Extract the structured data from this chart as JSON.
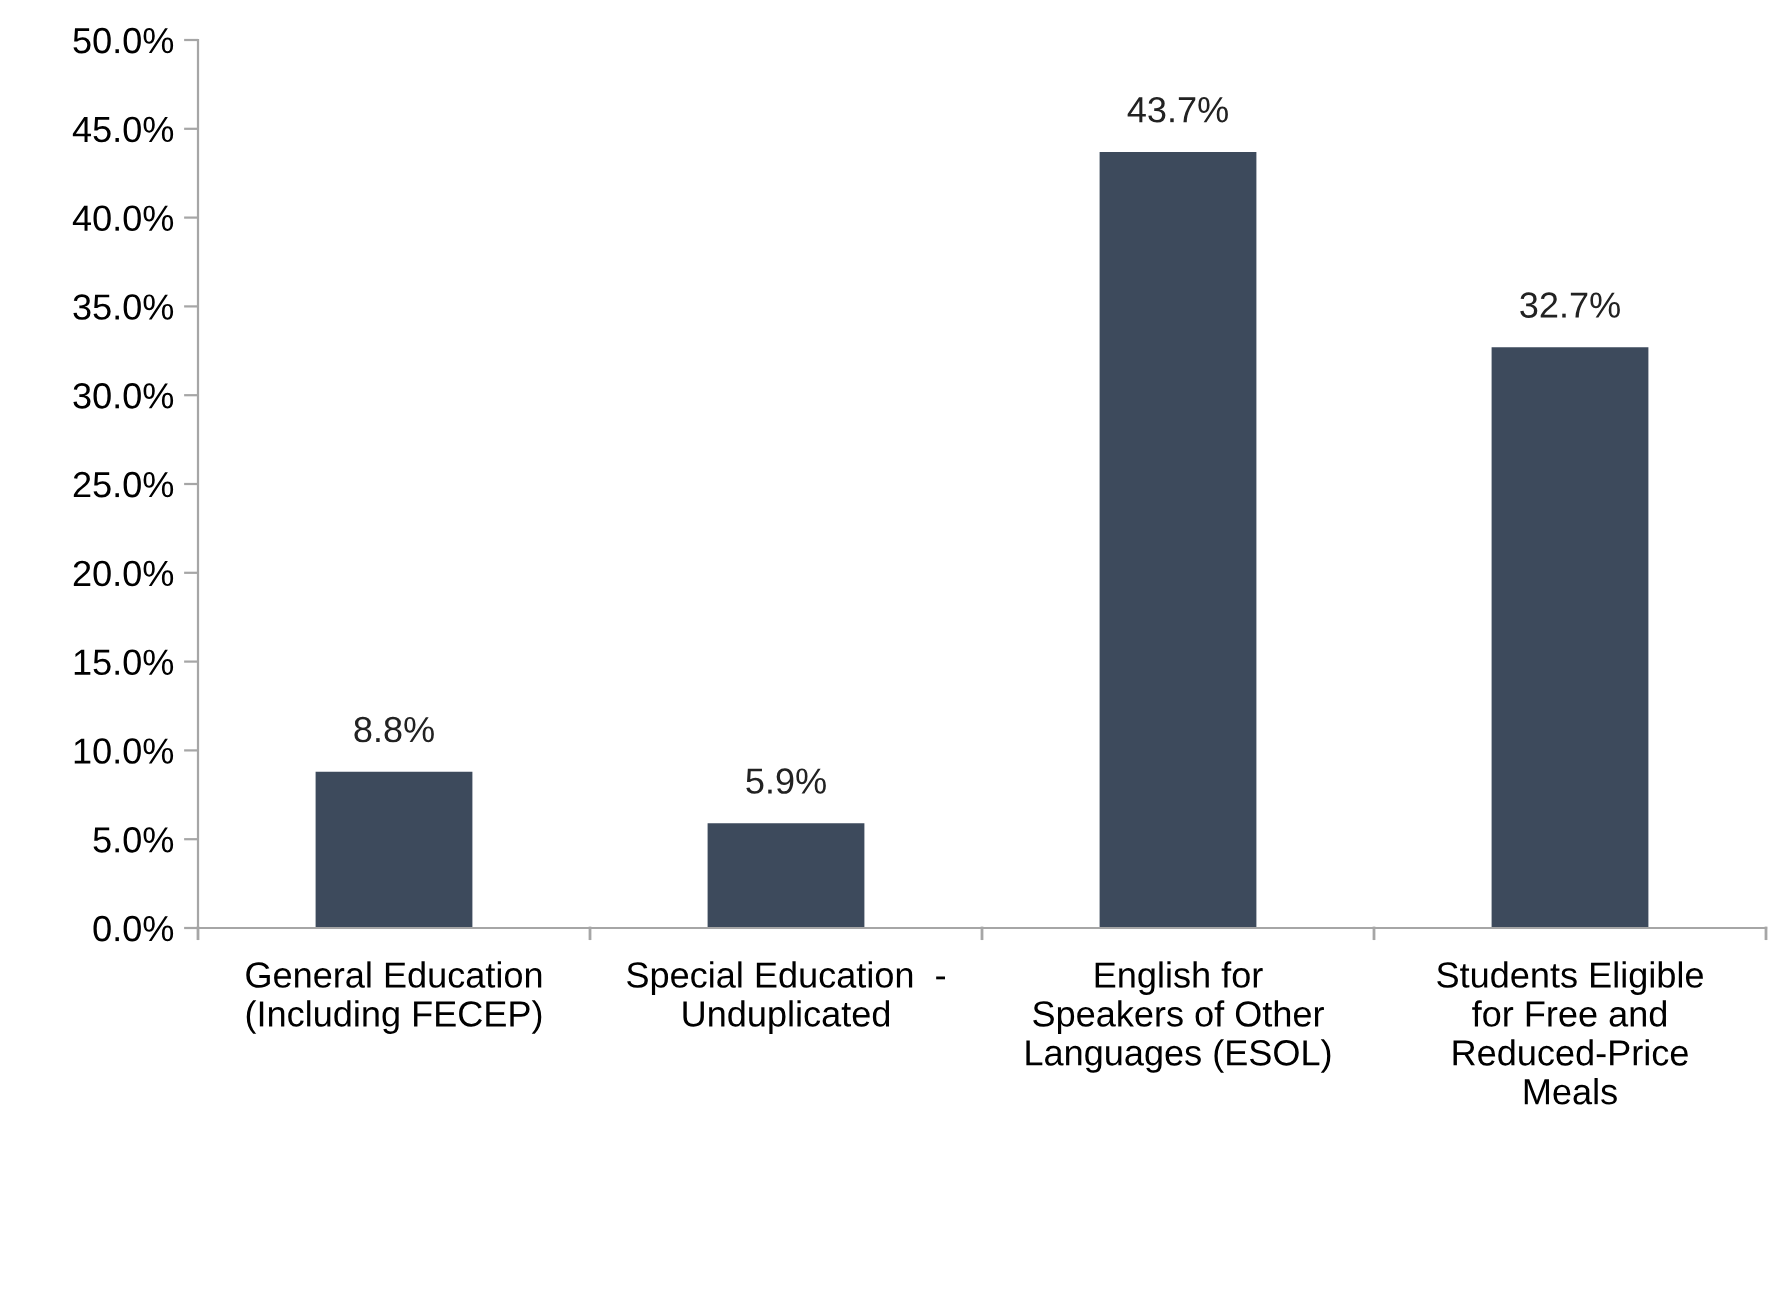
{
  "chart_data": {
    "type": "bar",
    "categories": [
      "General Education\n(Including FECEP)",
      "Special Education  -\nUnduplicated",
      "English for\nSpeakers of Other\nLanguages (ESOL)",
      "Students Eligible\nfor Free and\nReduced-Price\nMeals"
    ],
    "values": [
      8.8,
      5.9,
      43.7,
      32.7
    ],
    "value_labels": [
      "8.8%",
      "5.9%",
      "43.7%",
      "32.7%"
    ],
    "color": "#3d4a5c",
    "ylim": [
      0,
      50
    ],
    "yticks": [
      {
        "value": 0,
        "label": "0.0%"
      },
      {
        "value": 5,
        "label": "5.0%"
      },
      {
        "value": 10,
        "label": "10.0%"
      },
      {
        "value": 15,
        "label": "15.0%"
      },
      {
        "value": 20,
        "label": "20.0%"
      },
      {
        "value": 25,
        "label": "25.0%"
      },
      {
        "value": 30,
        "label": "30.0%"
      },
      {
        "value": 35,
        "label": "35.0%"
      },
      {
        "value": 40,
        "label": "40.0%"
      },
      {
        "value": 45,
        "label": "45.0%"
      },
      {
        "value": 50,
        "label": "50.0%"
      }
    ],
    "grid": false,
    "legend": false
  }
}
